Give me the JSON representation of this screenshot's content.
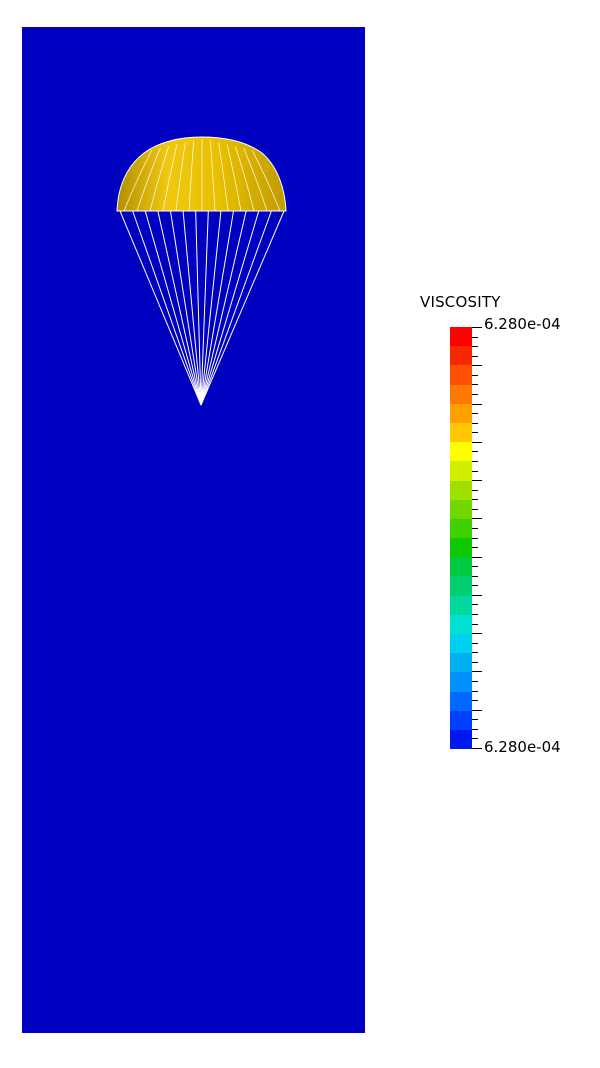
{
  "legend": {
    "title": "VISCOSITY",
    "max_label": "6.280e-04",
    "min_label": "6.280e-04",
    "colors": [
      "#ff0000",
      "#f52800",
      "#ff5000",
      "#ff7800",
      "#ffa000",
      "#ffc800",
      "#ffff00",
      "#d0f000",
      "#a0e000",
      "#70d800",
      "#40d000",
      "#10c800",
      "#00c840",
      "#00d070",
      "#00d8a0",
      "#00e0d0",
      "#00d0f0",
      "#00b0f0",
      "#0090ff",
      "#0068ff",
      "#0040ff",
      "#0018f0"
    ],
    "tick_count": 45
  },
  "scene": {
    "background_color": "#0000c0",
    "canopy_color": "#e0b800",
    "line_color": "#ffffff",
    "suspension_line_count": 14
  }
}
